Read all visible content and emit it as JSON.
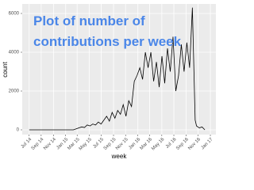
{
  "chart_data": {
    "type": "line",
    "annotations": [
      "Plot of number of",
      "contributions per week"
    ],
    "x_label": "week",
    "y_label": "count",
    "x": [
      0,
      4,
      8,
      12,
      16,
      20,
      24,
      28,
      32,
      34,
      36,
      38,
      40,
      42,
      44,
      46,
      48,
      50,
      52,
      54,
      56,
      58,
      60,
      62,
      64,
      66,
      68,
      70,
      72,
      74,
      76,
      78,
      80,
      82,
      84,
      86,
      88,
      90,
      92,
      94,
      96,
      98,
      100,
      102,
      104,
      106,
      108,
      110,
      112,
      114,
      116,
      118,
      120,
      121,
      123,
      125,
      127
    ],
    "values": [
      0,
      0,
      0,
      0,
      0,
      0,
      0,
      0,
      0,
      50,
      100,
      150,
      120,
      250,
      200,
      300,
      250,
      400,
      300,
      500,
      700,
      450,
      900,
      600,
      1000,
      800,
      1300,
      700,
      1500,
      1200,
      2500,
      2800,
      3200,
      2600,
      4000,
      3200,
      4000,
      2500,
      3500,
      2200,
      3800,
      2400,
      4200,
      3000,
      4800,
      2000,
      2800,
      4400,
      3000,
      4500,
      3200,
      6300,
      500,
      200,
      100,
      150,
      0
    ],
    "color": "#000000",
    "xlim": [
      -5,
      135
    ],
    "ylim": [
      -245,
      6490
    ],
    "xticks": [
      {
        "value": 0,
        "label": "Jul 14"
      },
      {
        "value": 8.7,
        "label": "Sep 14"
      },
      {
        "value": 17.6,
        "label": "Nov 14"
      },
      {
        "value": 26.4,
        "label": "Jan 15"
      },
      {
        "value": 34.7,
        "label": "Mar 15"
      },
      {
        "value": 43.4,
        "label": "May 15"
      },
      {
        "value": 52.1,
        "label": "Jul 15"
      },
      {
        "value": 61,
        "label": "Sep 15"
      },
      {
        "value": 69.7,
        "label": "Nov 15"
      },
      {
        "value": 78.6,
        "label": "Jan 16"
      },
      {
        "value": 87.1,
        "label": "Mar 16"
      },
      {
        "value": 95.9,
        "label": "May 16"
      },
      {
        "value": 104.6,
        "label": "Jul 16"
      },
      {
        "value": 113.4,
        "label": "Sep 16"
      },
      {
        "value": 122.1,
        "label": "Nov 16"
      },
      {
        "value": 131,
        "label": "Jan 17"
      }
    ],
    "yticks": [
      0,
      2000,
      4000,
      6000
    ],
    "grid": true
  }
}
